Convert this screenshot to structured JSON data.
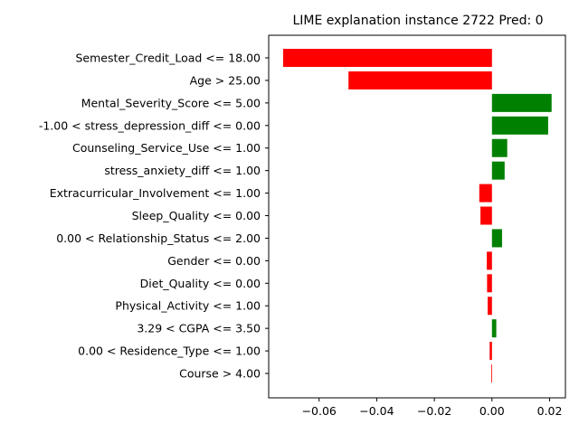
{
  "chart_data": {
    "type": "bar",
    "orientation": "horizontal",
    "title": "LIME explanation instance 2722 Pred: 0",
    "xlabel": "",
    "ylabel": "",
    "xlim": [
      -0.0775,
      0.0255
    ],
    "x_ticks": [
      -0.06,
      -0.04,
      -0.02,
      0.0,
      0.02
    ],
    "x_tick_labels": [
      "−0.06",
      "−0.04",
      "−0.02",
      "0.00",
      "0.02"
    ],
    "grid": false,
    "positive_color": "#008000",
    "negative_color": "#ff0000",
    "categories": [
      "Semester_Credit_Load <= 18.00",
      "Age > 25.00",
      "Mental_Severity_Score <= 5.00",
      "-1.00 < stress_depression_diff <= 0.00",
      "Counseling_Service_Use <= 1.00",
      "stress_anxiety_diff <= 1.00",
      "Extracurricular_Involvement <= 1.00",
      "Sleep_Quality <= 0.00",
      "0.00 < Relationship_Status <= 2.00",
      "Gender <= 0.00",
      "Diet_Quality <= 0.00",
      "Physical_Activity <= 1.00",
      "3.29 < CGPA <= 3.50",
      "0.00 < Residence_Type <= 1.00",
      "Course > 4.00"
    ],
    "values": [
      -0.0725,
      -0.0498,
      0.0207,
      0.0195,
      0.0053,
      0.0044,
      -0.0044,
      -0.004,
      0.0035,
      -0.0018,
      -0.0017,
      -0.0015,
      0.0015,
      -0.0008,
      -0.0002
    ]
  }
}
